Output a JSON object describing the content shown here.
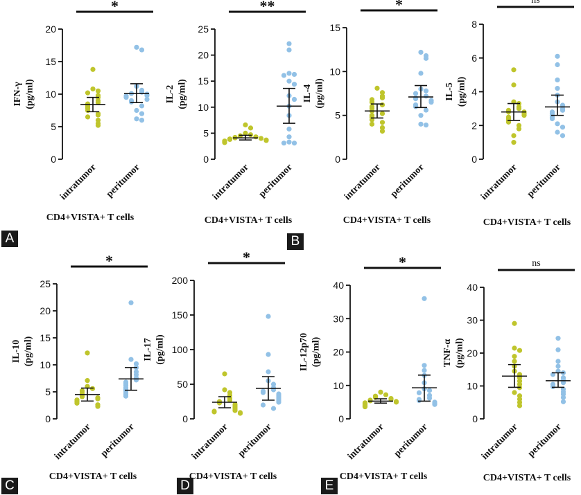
{
  "figure": {
    "panel_labels": [
      "A",
      "B",
      "C",
      "D",
      "E"
    ],
    "colors": {
      "intratumor": "#bfc52c",
      "peritumor": "#92c1e6",
      "axis": "#111111"
    }
  },
  "chart_data": [
    {
      "type": "scatter",
      "ylabel": "IFN-γ (pg/ml)",
      "xlabel": "CD4+VISTA+ T cells",
      "categories": [
        "intratumor",
        "peritumor"
      ],
      "ylim": [
        0,
        20
      ],
      "yticks": [
        0,
        5,
        10,
        15,
        20
      ],
      "significance": "*",
      "series": [
        {
          "name": "intratumor",
          "values": [
            13.8,
            10.8,
            10.5,
            10.2,
            9.8,
            9.5,
            9.0,
            8.7,
            8.5,
            8.2,
            8.0,
            7.8,
            7.5,
            7.0,
            6.8,
            6.5,
            6.0,
            5.5,
            5.2
          ],
          "mean": 8.4,
          "error": [
            7.3,
            9.5
          ]
        },
        {
          "name": "peritumor",
          "values": [
            17.2,
            16.8,
            11.2,
            10.6,
            10.3,
            10.1,
            10.0,
            9.8,
            9.7,
            9.5,
            9.2,
            9.0,
            8.8,
            8.2,
            7.5,
            7.0,
            6.2,
            6.0
          ],
          "mean": 10.1,
          "error": [
            8.7,
            11.6
          ]
        }
      ]
    },
    {
      "type": "scatter",
      "ylabel": "IL-2 (pg/ml)",
      "xlabel": "CD4+VISTA+ T cells",
      "categories": [
        "intratumor",
        "peritumor"
      ],
      "ylim": [
        0,
        25
      ],
      "yticks": [
        0,
        5,
        10,
        15,
        20,
        25
      ],
      "significance": "**",
      "series": [
        {
          "name": "intratumor",
          "values": [
            6.6,
            6.0,
            5.0,
            4.7,
            4.5,
            4.3,
            4.2,
            4.1,
            4.0,
            3.9,
            3.8,
            3.7,
            3.6,
            3.5,
            3.4,
            3.3,
            3.2
          ],
          "mean": 4.1,
          "error": [
            3.7,
            4.6
          ]
        },
        {
          "name": "peritumor",
          "values": [
            22.2,
            21.0,
            16.5,
            16.3,
            16.1,
            15.0,
            14.4,
            12.2,
            11.5,
            10.2,
            8.4,
            5.8,
            4.3,
            3.3,
            3.1,
            3.1
          ],
          "mean": 10.2,
          "error": [
            6.9,
            13.6
          ]
        }
      ]
    },
    {
      "type": "scatter",
      "ylabel": "IL-4 (pg/ml)",
      "xlabel": "CD4+VISTA+ T cells",
      "categories": [
        "intratumor",
        "peritumor"
      ],
      "ylim": [
        0,
        15
      ],
      "yticks": [
        0,
        5,
        10,
        15
      ],
      "significance": "*",
      "series": [
        {
          "name": "intratumor",
          "values": [
            8.1,
            7.6,
            7.2,
            7.0,
            6.8,
            6.5,
            6.2,
            6.0,
            5.8,
            5.5,
            5.2,
            5.0,
            4.8,
            4.5,
            4.2,
            4.0,
            3.6,
            3.2
          ],
          "mean": 5.5,
          "error": [
            4.7,
            6.3
          ]
        },
        {
          "name": "peritumor",
          "values": [
            12.2,
            11.8,
            11.5,
            9.8,
            8.0,
            7.8,
            7.5,
            7.2,
            7.0,
            6.9,
            6.7,
            6.5,
            6.2,
            6.0,
            5.6,
            5.0,
            4.0,
            3.9
          ],
          "mean": 7.1,
          "error": [
            5.9,
            8.4
          ]
        }
      ]
    },
    {
      "type": "scatter",
      "ylabel": "IL-5 (pg/ml)",
      "xlabel": "CD4+VISTA+ T cells",
      "categories": [
        "intratumor",
        "peritumor"
      ],
      "ylim": [
        0,
        8
      ],
      "yticks": [
        0,
        2,
        4,
        6,
        8
      ],
      "significance": "ns",
      "series": [
        {
          "name": "intratumor",
          "values": [
            5.3,
            4.4,
            3.4,
            3.3,
            3.1,
            3.0,
            2.9,
            2.8,
            2.8,
            2.7,
            2.6,
            2.5,
            2.4,
            2.3,
            2.2,
            2.0,
            1.8,
            1.4,
            1.0
          ],
          "mean": 2.8,
          "error": [
            2.3,
            3.3
          ]
        },
        {
          "name": "peritumor",
          "values": [
            6.1,
            5.6,
            4.7,
            4.2,
            3.8,
            3.4,
            3.2,
            3.0,
            2.9,
            2.8,
            2.7,
            2.6,
            2.5,
            2.4,
            2.1,
            1.9,
            1.6,
            1.4
          ],
          "mean": 3.1,
          "error": [
            2.6,
            3.8
          ]
        }
      ]
    },
    {
      "type": "scatter",
      "ylabel": "IL-10 (pg/ml)",
      "xlabel": "CD4+VISTA+ T cells",
      "categories": [
        "intratumor",
        "peritumor"
      ],
      "ylim": [
        0,
        25
      ],
      "yticks": [
        0,
        5,
        10,
        15,
        20,
        25
      ],
      "significance": "*",
      "series": [
        {
          "name": "intratumor",
          "values": [
            12.2,
            7.1,
            6.0,
            5.6,
            5.2,
            5.0,
            4.6,
            4.3,
            4.1,
            3.9,
            3.7,
            3.5,
            3.3,
            3.1,
            2.9,
            2.6,
            2.3
          ],
          "mean": 4.5,
          "error": [
            3.3,
            5.7
          ]
        },
        {
          "name": "peritumor",
          "values": [
            21.5,
            11.0,
            10.2,
            9.5,
            8.7,
            8.2,
            7.6,
            7.2,
            6.8,
            6.5,
            6.2,
            5.8,
            5.5,
            5.2,
            4.8,
            4.5,
            4.2
          ],
          "mean": 7.4,
          "error": [
            5.3,
            9.5
          ]
        }
      ]
    },
    {
      "type": "scatter",
      "ylabel": "IL-17 (pg/ml)",
      "xlabel": "CD4+VISTA+ T cells",
      "categories": [
        "intratumor",
        "peritumor"
      ],
      "ylim": [
        0,
        200
      ],
      "yticks": [
        0,
        50,
        100,
        150,
        200
      ],
      "significance": "*",
      "series": [
        {
          "name": "intratumor",
          "values": [
            65,
            42,
            38,
            34,
            30,
            27,
            25,
            23,
            21,
            19,
            17,
            15,
            13,
            12,
            11,
            10,
            9,
            8
          ],
          "mean": 24,
          "error": [
            16,
            32
          ]
        },
        {
          "name": "peritumor",
          "values": [
            148,
            93,
            68,
            55,
            50,
            45,
            42,
            40,
            38,
            36,
            34,
            32,
            30,
            28,
            26,
            24,
            20,
            15
          ],
          "mean": 44,
          "error": [
            27,
            61
          ]
        }
      ]
    },
    {
      "type": "scatter",
      "ylabel": "IL-12p70 (pg/ml)",
      "xlabel": "CD4+VISTA+ T cells",
      "categories": [
        "intratumor",
        "peritumor"
      ],
      "ylim": [
        0,
        40
      ],
      "yticks": [
        0,
        10,
        20,
        30,
        40
      ],
      "significance": "*",
      "series": [
        {
          "name": "intratumor",
          "values": [
            8.0,
            7.2,
            6.8,
            6.4,
            6.1,
            5.8,
            5.6,
            5.4,
            5.2,
            5.0,
            4.8,
            4.6,
            4.4,
            4.2,
            4.0,
            3.8,
            3.6
          ],
          "mean": 5.3,
          "error": [
            4.7,
            6.0
          ]
        },
        {
          "name": "peritumor",
          "values": [
            36.0,
            16.0,
            14.5,
            13.0,
            10.8,
            9.0,
            8.5,
            7.8,
            7.0,
            6.2,
            5.8,
            5.5,
            5.0,
            4.6,
            4.3
          ],
          "mean": 9.3,
          "error": [
            5.3,
            13.1
          ]
        }
      ]
    },
    {
      "type": "scatter",
      "ylabel": "TNF-α (pg/ml)",
      "xlabel": "CD4+VISTA+ T cells",
      "categories": [
        "intratumor",
        "peritumor"
      ],
      "ylim": [
        0,
        40
      ],
      "yticks": [
        0,
        10,
        20,
        30,
        40
      ],
      "significance": "ns",
      "series": [
        {
          "name": "intratumor",
          "values": [
            29.0,
            21.5,
            20.8,
            19.0,
            17.5,
            16.0,
            14.5,
            13.5,
            12.5,
            11.5,
            10.5,
            9.5,
            8.0,
            7.0,
            6.0,
            5.0,
            4.0
          ],
          "mean": 13.0,
          "error": [
            9.6,
            16.5
          ]
        },
        {
          "name": "peritumor",
          "values": [
            24.5,
            21.0,
            17.5,
            16.0,
            14.5,
            14.0,
            13.5,
            12.5,
            11.8,
            11.0,
            10.5,
            9.8,
            9.0,
            8.2,
            7.5,
            6.5,
            5.2
          ],
          "mean": 11.6,
          "error": [
            9.6,
            14.0
          ]
        }
      ]
    }
  ]
}
